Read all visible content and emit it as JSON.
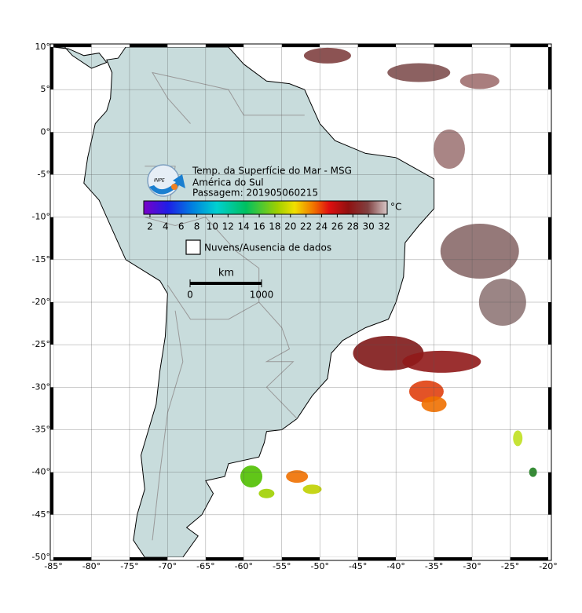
{
  "map": {
    "title": "Temp. da Superfície do Mar - MSG",
    "region": "América do Sul",
    "pass": "Passagem: 201905060215",
    "logo": "INPE",
    "colorbar": {
      "unit": "°C",
      "range": [
        1.2,
        32.4
      ],
      "ticks": [
        2,
        4,
        6,
        8,
        10,
        12,
        14,
        16,
        18,
        20,
        22,
        24,
        26,
        28,
        30,
        32
      ]
    },
    "legend": "Nuvens/Ausencia de dados",
    "scale": {
      "unit": "km",
      "ticks": [
        0,
        1000
      ]
    },
    "xlim": [
      -85,
      -20
    ],
    "ylim": [
      -50,
      10
    ],
    "xticks": [
      {
        "value": -85,
        "label": "-85°"
      },
      {
        "value": -80,
        "label": "-80°"
      },
      {
        "value": -75,
        "label": "-75°"
      },
      {
        "value": -70,
        "label": "-70°"
      },
      {
        "value": -65,
        "label": "-65°"
      },
      {
        "value": -60,
        "label": "-60°"
      },
      {
        "value": -55,
        "label": "-55°"
      },
      {
        "value": -50,
        "label": "-50°"
      },
      {
        "value": -45,
        "label": "-45°"
      },
      {
        "value": -40,
        "label": "-40°"
      },
      {
        "value": -35,
        "label": "-35°"
      },
      {
        "value": -30,
        "label": "-30°"
      },
      {
        "value": -25,
        "label": "-25°"
      },
      {
        "value": -20,
        "label": "-20°"
      }
    ],
    "yticks": [
      {
        "value": 10,
        "label": "10°"
      },
      {
        "value": 5,
        "label": "5°"
      },
      {
        "value": 0,
        "label": "0°"
      },
      {
        "value": -5,
        "label": "-5°"
      },
      {
        "value": -10,
        "label": "-10°"
      },
      {
        "value": -15,
        "label": "-15°"
      },
      {
        "value": -20,
        "label": "-20°"
      },
      {
        "value": -25,
        "label": "-25°"
      },
      {
        "value": -30,
        "label": "-30°"
      },
      {
        "value": -35,
        "label": "-35°"
      },
      {
        "value": -40,
        "label": "-40°"
      },
      {
        "value": -45,
        "label": "-45°"
      },
      {
        "value": -50,
        "label": "-50°"
      }
    ]
  }
}
